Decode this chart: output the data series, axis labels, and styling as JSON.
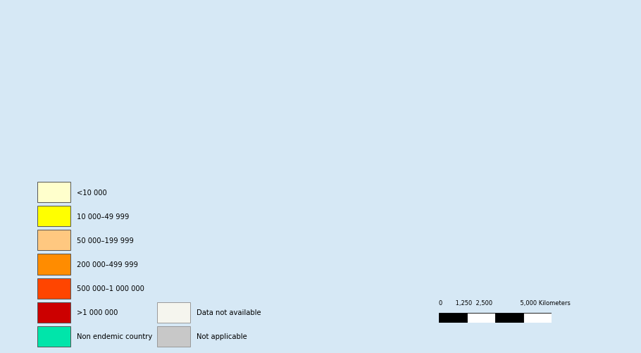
{
  "background_color": "#d6e8f5",
  "legend_items": [
    {
      "label": "<10 000",
      "color": "#ffffcc",
      "border": "#555555"
    },
    {
      "label": "10 000–49 999",
      "color": "#ffff00",
      "border": "#555555"
    },
    {
      "label": "50 000–199 999",
      "color": "#ffc880",
      "border": "#555555"
    },
    {
      "label": "200 000–499 999",
      "color": "#ff8c00",
      "border": "#555555"
    },
    {
      "label": "500 000–1 000 000",
      "color": "#ff4500",
      "border": "#555555"
    },
    {
      "label": ">1 000 000",
      "color": "#cc0000",
      "border": "#555555"
    },
    {
      "label": "Non endemic country",
      "color": "#00e5aa",
      "border": "#555555"
    }
  ],
  "legend_items2": [
    {
      "label": "Data not available",
      "color": "#f5f5ee",
      "border": "#999999"
    },
    {
      "label": "Not applicable",
      "color": "#c8c8c8",
      "border": "#999999"
    }
  ],
  "country_colors": {
    "United States of America": "#66bb00",
    "Canada": "#66bb00",
    "Mexico": "#ffffcc",
    "Guatemala": "#00e5aa",
    "Belize": "#00e5aa",
    "Honduras": "#00e5aa",
    "El Salvador": "#00e5aa",
    "Nicaragua": "#00e5aa",
    "Costa Rica": "#00e5aa",
    "Panama": "#00e5aa",
    "Cuba": "#00e5aa",
    "Jamaica": "#00e5aa",
    "Haiti": "#ffff00",
    "Dominican Rep.": "#ffff00",
    "Trinidad and Tobago": "#00e5aa",
    "Puerto Rico": "#00e5aa",
    "Colombia": "#ffc880",
    "Venezuela": "#ffff00",
    "Guyana": "#ffff00",
    "Suriname": "#ffff00",
    "Fr. Guiana": "#ffff00",
    "Ecuador": "#ff8c00",
    "Peru": "#ff8c00",
    "Brazil": "#ff8c00",
    "Bolivia": "#ff8c00",
    "Paraguay": "#ffffcc",
    "Uruguay": "#ffffcc",
    "Argentina": "#ffffcc",
    "Chile": "#00e5aa",
    "Greenland": "#f5f5ee",
    "Iceland": "#00e5aa",
    "Norway": "#00e5aa",
    "Sweden": "#00e5aa",
    "Finland": "#00e5aa",
    "Denmark": "#00e5aa",
    "United Kingdom": "#00e5aa",
    "Ireland": "#00e5aa",
    "Portugal": "#00e5aa",
    "Spain": "#00e5aa",
    "France": "#00e5aa",
    "Belgium": "#00e5aa",
    "Netherlands": "#00e5aa",
    "Luxembourg": "#00e5aa",
    "Germany": "#00e5aa",
    "Switzerland": "#00e5aa",
    "Austria": "#00e5aa",
    "Italy": "#00e5aa",
    "Poland": "#00e5aa",
    "Czech Rep.": "#00e5aa",
    "Slovakia": "#00e5aa",
    "Hungary": "#00e5aa",
    "Romania": "#ffffcc",
    "Bulgaria": "#ffffcc",
    "Serbia": "#ffffcc",
    "Croatia": "#00e5aa",
    "Bosnia and Herz.": "#ffffcc",
    "Slovenia": "#00e5aa",
    "Albania": "#ffffcc",
    "Macedonia": "#ffffcc",
    "Greece": "#00e5aa",
    "Turkey": "#ffffcc",
    "Ukraine": "#ffffcc",
    "Belarus": "#ffffcc",
    "Moldova": "#ffffcc",
    "Lithuania": "#00e5aa",
    "Latvia": "#00e5aa",
    "Estonia": "#00e5aa",
    "Russia": "#ffffcc",
    "Kazakhstan": "#ffffcc",
    "Uzbekistan": "#ffff00",
    "Turkmenistan": "#ffffcc",
    "Tajikistan": "#ffff00",
    "Kyrgyzstan": "#ffff00",
    "Azerbaijan": "#ffff00",
    "Georgia": "#ffff00",
    "Armenia": "#ffff00",
    "Mongolia": "#ffffcc",
    "China": "#ffffcc",
    "Japan": "#00e5aa",
    "S. Korea": "#00e5aa",
    "N. Korea": "#ffffcc",
    "Taiwan": "#ffffcc",
    "Myanmar": "#ff8c00",
    "Thailand": "#ffc880",
    "Laos": "#ffff00",
    "Vietnam": "#ffc880",
    "Cambodia": "#ffff00",
    "Malaysia": "#ffc880",
    "Indonesia": "#ff8c00",
    "Philippines": "#ffc880",
    "Papua New Guinea": "#ff8c00",
    "Australia": "#00e5aa",
    "New Zealand": "#00e5aa",
    "India": "#cc0000",
    "Pakistan": "#ff4500",
    "Bangladesh": "#ffc880",
    "Sri Lanka": "#ffff00",
    "Nepal": "#ffff00",
    "Bhutan": "#ffff00",
    "Afghanistan": "#ffc880",
    "Iran": "#ffffcc",
    "Iraq": "#ffffcc",
    "Syria": "#ffffcc",
    "Lebanon": "#ffffcc",
    "Jordan": "#ffffcc",
    "Israel": "#00e5aa",
    "Palestine": "#ffffcc",
    "Saudi Arabia": "#ffffcc",
    "Yemen": "#ff4500",
    "Oman": "#ffffcc",
    "United Arab Emirates": "#ffffcc",
    "Kuwait": "#ffffcc",
    "Qatar": "#ffffcc",
    "Bahrain": "#ffffcc",
    "Egypt": "#ffff00",
    "Libya": "#ffffcc",
    "Tunisia": "#ffffcc",
    "Algeria": "#ffff00",
    "Morocco": "#ffff00",
    "Mauritania": "#ffff00",
    "Mali": "#ff4500",
    "Niger": "#cc0000",
    "Chad": "#cc0000",
    "Sudan": "#cc0000",
    "S. Sudan": "#cc0000",
    "Ethiopia": "#cc0000",
    "Eritrea": "#ffc880",
    "Djibouti": "#ffff00",
    "Somalia": "#cc0000",
    "Kenya": "#ff4500",
    "Uganda": "#cc0000",
    "Rwanda": "#cc0000",
    "Burundi": "#ffc880",
    "Tanzania": "#cc0000",
    "Mozambique": "#ff4500",
    "Madagascar": "#ffc880",
    "Malawi": "#ffc880",
    "Zambia": "#ff4500",
    "Zimbabwe": "#ffc880",
    "Botswana": "#ffff00",
    "Namibia": "#ffff00",
    "South Africa": "#ffff00",
    "Angola": "#cc0000",
    "Dem. Rep. Congo": "#cc0000",
    "Congo": "#cc0000",
    "Central African Rep.": "#cc0000",
    "Cameroon": "#ff4500",
    "Nigeria": "#cc0000",
    "Ghana": "#ff4500",
    "Côte d'Ivoire": "#cc0000",
    "Senegal": "#ffc880",
    "Gambia": "#ffff00",
    "Guinea-Bissau": "#ffc880",
    "Guinea": "#ff4500",
    "Sierra Leone": "#ffc880",
    "Liberia": "#ff8c00",
    "Burkina Faso": "#cc0000",
    "Benin": "#ff4500",
    "Togo": "#ffc880",
    "Gabon": "#ff4500",
    "Eq. Guinea": "#ffc880",
    "São Tomé and Príncipe": "#ffff00",
    "Comoros": "#ffff00",
    "Seychelles": "#ffffcc",
    "Mauritius": "#ffff00",
    "W. Sahara": "#c8c8c8",
    "Kosovo": "#ffffcc",
    "Montenegro": "#ffffcc",
    "Cyprus": "#00e5aa",
    "Timor-Leste": "#ffff00"
  }
}
